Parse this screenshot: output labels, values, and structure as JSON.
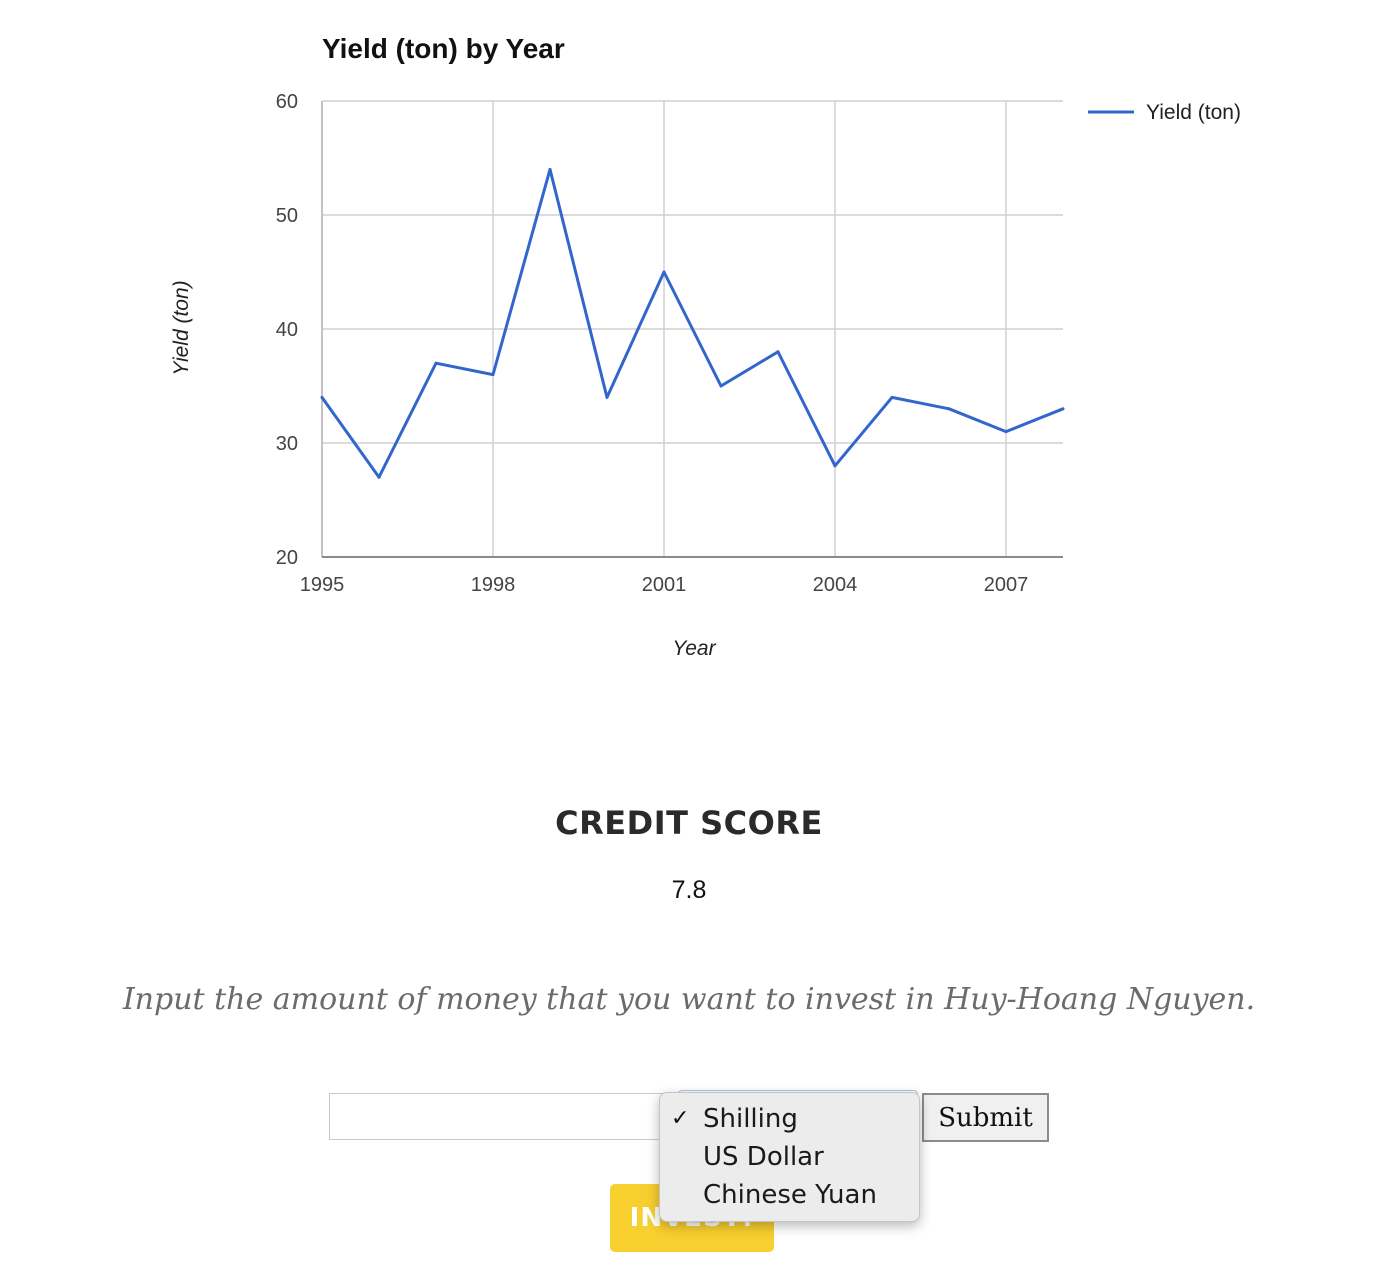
{
  "chart_data": {
    "type": "line",
    "title": "Yield (ton) by Year",
    "xlabel": "Year",
    "ylabel": "Yield (ton)",
    "x": [
      1995,
      1996,
      1997,
      1998,
      1999,
      2000,
      2001,
      2002,
      2003,
      2004,
      2005,
      2006,
      2007,
      2008
    ],
    "series": [
      {
        "name": "Yield (ton)",
        "color": "#3366cc",
        "values": [
          34,
          27,
          37,
          36,
          54,
          34,
          45,
          35,
          38,
          28,
          34,
          33,
          31,
          33
        ]
      }
    ],
    "xlim": [
      1995,
      2008
    ],
    "ylim": [
      20,
      60
    ],
    "xticks": [
      1995,
      1998,
      2001,
      2004,
      2007
    ],
    "yticks": [
      20,
      30,
      40,
      50,
      60
    ],
    "grid": true,
    "legend_position": "right"
  },
  "credit": {
    "heading": "CREDIT SCORE",
    "value": "7.8"
  },
  "prompt": "Input the amount of money that you want to invest in Huy-Hoang Nguyen.",
  "form": {
    "amount_value": "",
    "selected_currency": "Shilling",
    "currency_options": [
      "Shilling",
      "US Dollar",
      "Chinese Yuan"
    ],
    "check_mark": "✓",
    "submit_label": "Submit",
    "invest_label": "INVEST!"
  },
  "colors": {
    "accent_yellow": "#f7cf2f",
    "line_blue": "#3366cc"
  }
}
